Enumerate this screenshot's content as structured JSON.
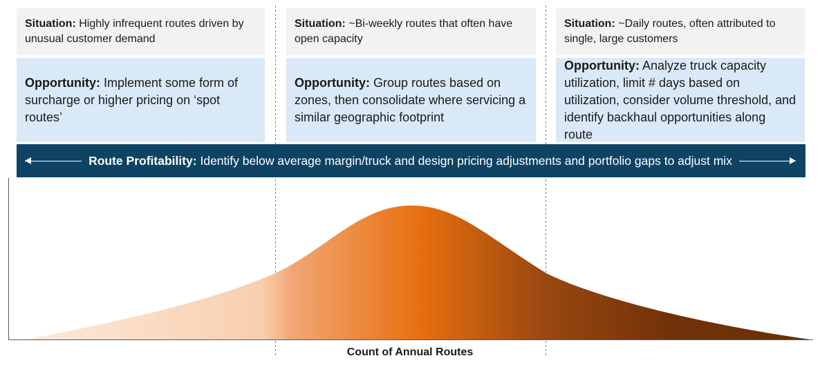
{
  "columns": [
    {
      "situation_label": "Situation:",
      "situation_text": "Highly infrequent routes driven by unusual customer demand",
      "opportunity_label": "Opportunity:",
      "opportunity_text": "Implement some form of surcharge or higher pricing on ‘spot routes’"
    },
    {
      "situation_label": "Situation:",
      "situation_text": "~Bi-weekly routes that often have open capacity",
      "opportunity_label": "Opportunity:",
      "opportunity_text": "Group routes based on zones, then consolidate where servicing a similar geographic footprint"
    },
    {
      "situation_label": "Situation:",
      "situation_text": "~Daily routes, often attributed to single, large customers",
      "opportunity_label": "Opportunity:",
      "opportunity_text": "Analyze truck capacity utilization, limit # days based on utilization, consider volume threshold, and identify backhaul opportunities along route"
    }
  ],
  "banner": {
    "label": "Route Profitability:",
    "text": "Identify below average margin/truck and design pricing adjustments and portfolio gaps to adjust mix"
  },
  "x_axis_label": "Count of Annual Routes",
  "colors": {
    "situation_bg": "#f2f2f2",
    "opportunity_bg": "#d9e9f8",
    "banner_bg": "#0e4364",
    "curve_light": "#fbd9c1",
    "curve_mid": "#e8700f",
    "curve_dark": "#6e3108"
  }
}
